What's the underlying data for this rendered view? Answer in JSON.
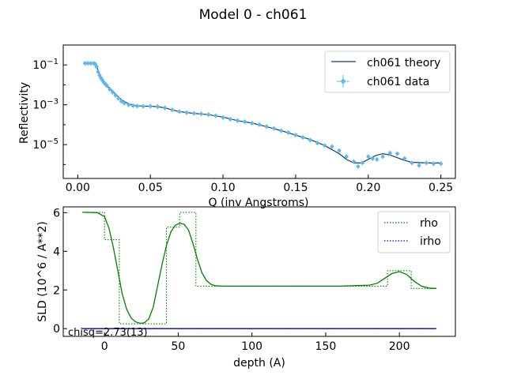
{
  "figure": {
    "title": "Model 0 - ch061"
  },
  "chart_data": [
    {
      "type": "scatter",
      "title": "",
      "xlabel": "Q (inv Angstroms)",
      "ylabel": "Reflectivity",
      "xscale": "linear",
      "yscale": "log",
      "xlim": [
        -0.01,
        0.26
      ],
      "ylim": [
        2e-07,
        1
      ],
      "xticks": [
        "0.00",
        "0.05",
        "0.10",
        "0.15",
        "0.20",
        "0.25"
      ],
      "yticks": [
        "10^{-1}",
        "10^{-3}",
        "10^{-5}"
      ],
      "legend_position": "top-right",
      "legend": [
        "ch061 theory",
        "ch061 data"
      ],
      "colors": {
        "theory": "#1f3a5f",
        "data": "#5bb8f0"
      },
      "series": [
        {
          "name": "ch061 theory",
          "style": "line",
          "x": [
            0.008,
            0.01,
            0.012,
            0.013,
            0.014,
            0.016,
            0.018,
            0.02,
            0.025,
            0.03,
            0.035,
            0.04,
            0.045,
            0.05,
            0.055,
            0.06,
            0.065,
            0.07,
            0.08,
            0.09,
            0.1,
            0.11,
            0.12,
            0.13,
            0.14,
            0.15,
            0.16,
            0.17,
            0.18,
            0.185,
            0.19,
            0.195,
            0.2,
            0.205,
            0.21,
            0.215,
            0.22,
            0.225,
            0.23,
            0.24,
            0.25
          ],
          "y": [
            0.12,
            0.12,
            0.12,
            0.09,
            0.05,
            0.025,
            0.015,
            0.009,
            0.004,
            0.0018,
            0.0011,
            0.0009,
            0.00085,
            0.00085,
            0.0008,
            0.0007,
            0.00055,
            0.00045,
            0.00037,
            0.00032,
            0.00024,
            0.00016,
            0.00012,
            8e-05,
            5e-05,
            3e-05,
            1.8e-05,
            9e-06,
            3.5e-06,
            1.8e-06,
            1.2e-06,
            1.2e-06,
            1.8e-06,
            2.8e-06,
            3.5e-06,
            3e-06,
            2.2e-06,
            1.6e-06,
            1.3e-06,
            1.2e-06,
            1.2e-06
          ]
        },
        {
          "name": "ch061 data",
          "style": "errorbar",
          "x": [
            0.005,
            0.007,
            0.009,
            0.011,
            0.012,
            0.013,
            0.014,
            0.015,
            0.016,
            0.017,
            0.018,
            0.019,
            0.02,
            0.022,
            0.024,
            0.026,
            0.028,
            0.03,
            0.032,
            0.035,
            0.038,
            0.041,
            0.045,
            0.05,
            0.055,
            0.06,
            0.065,
            0.07,
            0.075,
            0.08,
            0.085,
            0.09,
            0.095,
            0.1,
            0.105,
            0.11,
            0.115,
            0.12,
            0.125,
            0.13,
            0.135,
            0.14,
            0.145,
            0.15,
            0.155,
            0.16,
            0.165,
            0.17,
            0.175,
            0.18,
            0.185,
            0.19,
            0.193,
            0.196,
            0.2,
            0.203,
            0.206,
            0.21,
            0.215,
            0.22,
            0.225,
            0.23,
            0.235,
            0.24,
            0.245,
            0.25
          ],
          "y": [
            0.12,
            0.12,
            0.12,
            0.12,
            0.11,
            0.08,
            0.045,
            0.03,
            0.022,
            0.017,
            0.013,
            0.011,
            0.009,
            0.006,
            0.0043,
            0.003,
            0.0021,
            0.0015,
            0.0012,
            0.001,
            0.0009,
            0.00086,
            0.00084,
            0.00085,
            0.0008,
            0.0007,
            0.00055,
            0.00045,
            0.0004,
            0.00037,
            0.00035,
            0.00032,
            0.00028,
            0.00023,
            0.00019,
            0.00016,
            0.00014,
            0.00012,
            0.0001,
            8e-05,
            6.5e-05,
            5e-05,
            4e-05,
            3e-05,
            2.3e-05,
            1.7e-05,
            1.2e-05,
            9e-06,
            8e-06,
            5e-06,
            2.5e-06,
            1.4e-06,
            8e-07,
            1.2e-06,
            2.5e-06,
            2e-06,
            1.8e-06,
            2.5e-06,
            3.8e-06,
            3.5e-06,
            2e-06,
            1.2e-06,
            9e-07,
            1.2e-06,
            1.1e-06,
            1.1e-06
          ]
        }
      ]
    },
    {
      "type": "line",
      "title": "",
      "xlabel": "depth (A)",
      "ylabel": "SLD (10^6 / A**2)",
      "xlim": [
        -28,
        238
      ],
      "ylim": [
        -0.4,
        6.3
      ],
      "xticks": [
        "0",
        "50",
        "100",
        "150",
        "200"
      ],
      "yticks": [
        "0",
        "2",
        "4",
        "6"
      ],
      "legend_position": "top-right",
      "legend": [
        "rho",
        "irho"
      ],
      "colors": {
        "rho": "#008000",
        "irho": "#0000cc"
      },
      "annotation": "chisq=2.73(13)",
      "series": [
        {
          "name": "rho",
          "style": "solid",
          "x": [
            -15,
            -5,
            0,
            3,
            6,
            9,
            12,
            15,
            18,
            21,
            24,
            27,
            30,
            33,
            36,
            39,
            42,
            45,
            48,
            51,
            54,
            57,
            60,
            63,
            66,
            69,
            72,
            75,
            80,
            90,
            100,
            120,
            140,
            160,
            180,
            185,
            190,
            195,
            200,
            205,
            210,
            215,
            220,
            225
          ],
          "y": [
            6.02,
            6.0,
            5.8,
            5.2,
            4.2,
            3.0,
            1.8,
            1.0,
            0.55,
            0.35,
            0.28,
            0.3,
            0.5,
            1.1,
            2.2,
            3.3,
            4.3,
            5.0,
            5.35,
            5.45,
            5.4,
            5.1,
            4.4,
            3.6,
            2.9,
            2.5,
            2.3,
            2.22,
            2.2,
            2.2,
            2.2,
            2.2,
            2.2,
            2.2,
            2.25,
            2.35,
            2.6,
            2.85,
            2.95,
            2.8,
            2.45,
            2.2,
            2.1,
            2.08
          ]
        },
        {
          "name": "rho",
          "style": "dotted",
          "x": [
            -15,
            0,
            0,
            10,
            10,
            42,
            42,
            51,
            51,
            62,
            62,
            192,
            192,
            208,
            208,
            225
          ],
          "y": [
            6.02,
            6.02,
            4.6,
            4.6,
            0.25,
            0.25,
            5.25,
            5.25,
            6.02,
            6.02,
            2.2,
            2.2,
            3.0,
            3.0,
            2.08,
            2.08
          ]
        },
        {
          "name": "irho",
          "style": "solid",
          "x": [
            -15,
            225
          ],
          "y": [
            0.0,
            0.0
          ]
        },
        {
          "name": "irho",
          "style": "dotted",
          "x": [
            -15,
            225
          ],
          "y": [
            0.0,
            0.0
          ]
        }
      ]
    }
  ]
}
